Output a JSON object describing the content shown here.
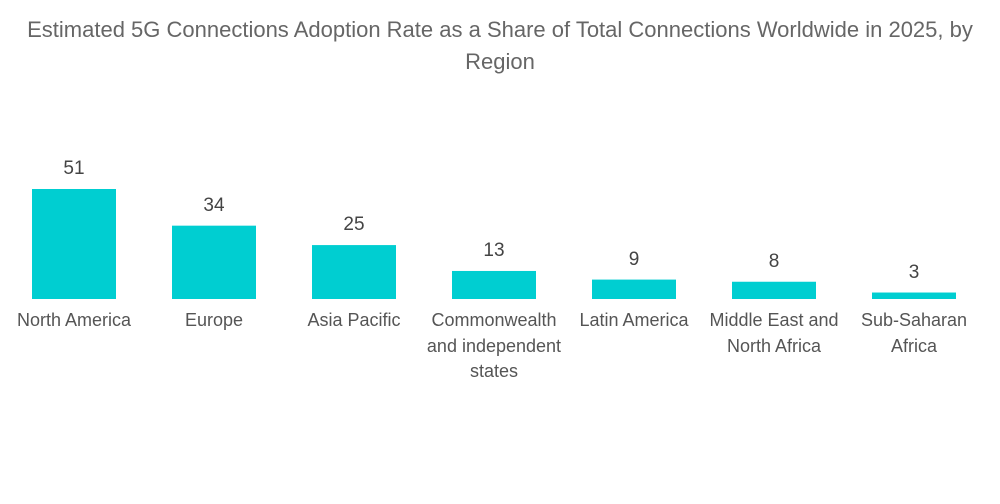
{
  "chart_data": {
    "type": "bar",
    "title": "Estimated 5G Connections Adoption Rate as a Share of Total Connections Worldwide in 2025, by Region",
    "categories": [
      "North America",
      "Europe",
      "Asia Pacific",
      "Commonwealth and independent states",
      "Latin America",
      "Middle East and North Africa",
      "Sub-Saharan Africa"
    ],
    "values": [
      51,
      34,
      25,
      13,
      9,
      8,
      3
    ],
    "xlabel": "",
    "ylabel": "",
    "ylim": [
      0,
      51
    ],
    "grid": false,
    "bar_color": "#00CED1"
  }
}
